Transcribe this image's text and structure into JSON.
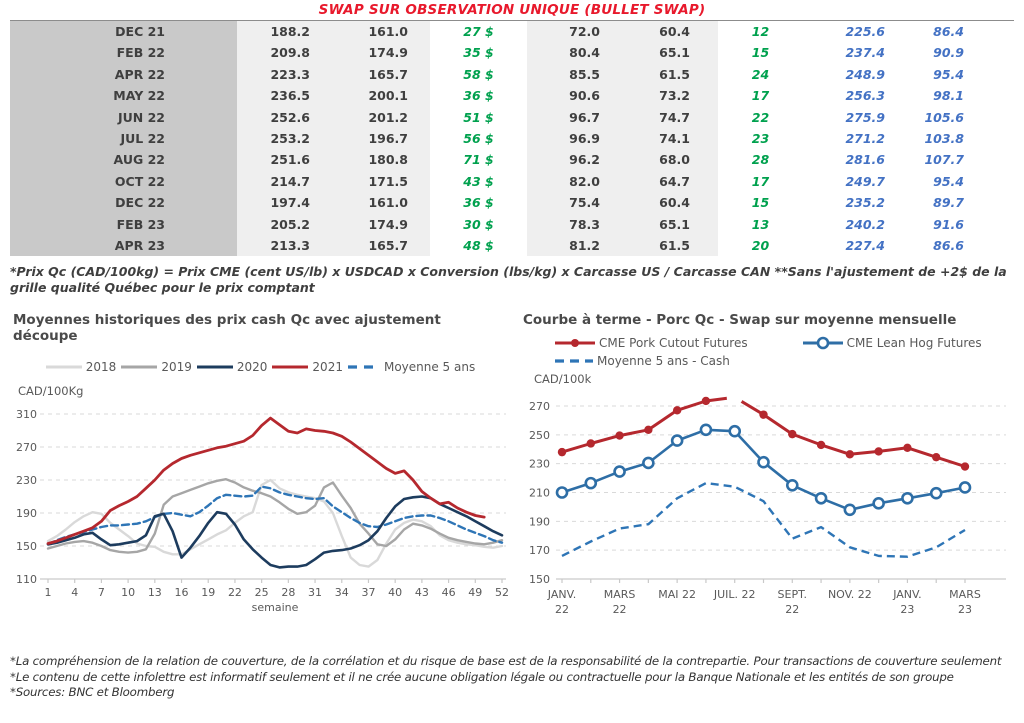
{
  "doc": {
    "title": "SWAP SUR OBSERVATION UNIQUE (BULLET SWAP)",
    "table_footnote": "*Prix Qc (CAD/100kg) = Prix CME (cent US/lb) x USDCAD x Conversion (lbs/kg) x Carcasse US / Carcasse CAN **Sans l'ajustement de +2$ de la grille qualité Québec pour le prix comptant",
    "bottom_notes": [
      "*La compréhension de la relation de couverture, de la corrélation et du risque de base est de la responsabilité de la contrepartie. Pour transactions de couverture seulement",
      "*Le contenu de cette infolettre est informatif seulement et il ne crée aucune obligation légale ou contractuelle pour la Banque Nationale et les entités de son groupe",
      "*Sources: BNC et Bloomberg"
    ]
  },
  "colors": {
    "title_red": "#e8192c",
    "red_2021": "#b5282e",
    "navy_2020": "#1d3c5e",
    "gray_2019": "#a6a6a6",
    "gray_2018": "#d9d9d9",
    "blue_dashed": "#2e75b6",
    "blue_lean_hog": "#2e6ea6",
    "green_text": "#00a14e",
    "blue_text": "#4472c4",
    "band_dark": "#c9c9c9",
    "band_light": "#efefef",
    "grid": "#d9d9d9",
    "axis_text": "#595959"
  },
  "table": {
    "rows": [
      [
        "DEC 21",
        "188.2",
        "161.0",
        "27 $",
        "72.0",
        "60.4",
        "12",
        "225.6",
        "86.4"
      ],
      [
        "FEB 22",
        "209.8",
        "174.9",
        "35 $",
        "80.4",
        "65.1",
        "15",
        "237.4",
        "90.9"
      ],
      [
        "APR 22",
        "223.3",
        "165.7",
        "58 $",
        "85.5",
        "61.5",
        "24",
        "248.9",
        "95.4"
      ],
      [
        "MAY 22",
        "236.5",
        "200.1",
        "36 $",
        "90.6",
        "73.2",
        "17",
        "256.3",
        "98.1"
      ],
      [
        "JUN 22",
        "252.6",
        "201.2",
        "51 $",
        "96.7",
        "74.7",
        "22",
        "275.9",
        "105.6"
      ],
      [
        "JUL 22",
        "253.2",
        "196.7",
        "56 $",
        "96.9",
        "74.1",
        "23",
        "271.2",
        "103.8"
      ],
      [
        "AUG 22",
        "251.6",
        "180.8",
        "71 $",
        "96.2",
        "68.0",
        "28",
        "281.6",
        "107.7"
      ],
      [
        "OCT 22",
        "214.7",
        "171.5",
        "43 $",
        "82.0",
        "64.7",
        "17",
        "249.7",
        "95.4"
      ],
      [
        "DEC 22",
        "197.4",
        "161.0",
        "36 $",
        "75.4",
        "60.4",
        "15",
        "235.2",
        "89.7"
      ],
      [
        "FEB 23",
        "205.2",
        "174.9",
        "30 $",
        "78.3",
        "65.1",
        "13",
        "240.2",
        "91.6"
      ],
      [
        "APR 23",
        "213.3",
        "165.7",
        "48 $",
        "81.2",
        "61.5",
        "20",
        "227.4",
        "86.6"
      ]
    ]
  },
  "chart_data": [
    {
      "type": "line",
      "title": "Moyennes historiques des prix cash Qc avec ajustement découpe",
      "ylabel": "CAD/100Kg",
      "xlabel": "semaine",
      "ylim": [
        110,
        310
      ],
      "yticks": [
        110,
        150,
        190,
        230,
        270,
        310
      ],
      "xticks": [
        1,
        4,
        7,
        10,
        13,
        16,
        19,
        22,
        25,
        28,
        31,
        34,
        37,
        40,
        43,
        46,
        49,
        52
      ],
      "legend_position": "top-center",
      "grid": "dashed-horizontal",
      "x_weeks": 52,
      "series": [
        {
          "name": "2018",
          "color": "#d9d9d9",
          "dash": null,
          "width": 2.4,
          "values": [
            156,
            162,
            170,
            179,
            186,
            191,
            189,
            178,
            170,
            162,
            153,
            150,
            149,
            143,
            140,
            140,
            146,
            152,
            158,
            164,
            169,
            178,
            186,
            191,
            224,
            230,
            220,
            215,
            212,
            210,
            208,
            204,
            190,
            162,
            136,
            127,
            125,
            133,
            153,
            170,
            178,
            182,
            180,
            174,
            163,
            157,
            154,
            152,
            151,
            149,
            148,
            150
          ]
        },
        {
          "name": "2019",
          "color": "#a6a6a6",
          "dash": null,
          "width": 2.4,
          "values": [
            147,
            150,
            153,
            155,
            156,
            154,
            150,
            145,
            143,
            142,
            143,
            146,
            165,
            200,
            210,
            214,
            218,
            222,
            226,
            229,
            231,
            227,
            221,
            217,
            214,
            210,
            203,
            195,
            189,
            191,
            199,
            221,
            227,
            211,
            196,
            177,
            165,
            152,
            150,
            158,
            170,
            177,
            175,
            171,
            165,
            160,
            157,
            155,
            153,
            152,
            154,
            157
          ]
        },
        {
          "name": "2020",
          "color": "#1d3c5e",
          "dash": null,
          "width": 2.6,
          "values": [
            152,
            154,
            157,
            160,
            164,
            166,
            158,
            151,
            152,
            154,
            156,
            163,
            186,
            189,
            168,
            136,
            148,
            162,
            178,
            191,
            189,
            176,
            158,
            146,
            136,
            127,
            124,
            125,
            125,
            127,
            134,
            142,
            144,
            145,
            147,
            151,
            157,
            168,
            184,
            198,
            207,
            209,
            210,
            208,
            201,
            196,
            191,
            186,
            180,
            174,
            168,
            163
          ]
        },
        {
          "name": "2021",
          "color": "#b5282e",
          "dash": null,
          "width": 2.8,
          "values": [
            153,
            156,
            160,
            164,
            168,
            172,
            180,
            193,
            199,
            204,
            210,
            220,
            230,
            242,
            250,
            256,
            260,
            263,
            266,
            269,
            271,
            274,
            277,
            284,
            296,
            305,
            297,
            289,
            287,
            292,
            290,
            289,
            287,
            283,
            276,
            268,
            260,
            252,
            244,
            238,
            241,
            230,
            216,
            208,
            201,
            203,
            196,
            191,
            187,
            185,
            null,
            null
          ]
        },
        {
          "name": "Moyenne 5 ans",
          "color": "#2e75b6",
          "dash": "7 4",
          "width": 2.4,
          "values": [
            152,
            157,
            161,
            164,
            167,
            170,
            173,
            175,
            175,
            176,
            177,
            180,
            185,
            189,
            190,
            188,
            186,
            191,
            199,
            208,
            212,
            211,
            210,
            211,
            222,
            220,
            215,
            212,
            210,
            208,
            207,
            208,
            198,
            191,
            184,
            178,
            174,
            173,
            176,
            180,
            184,
            186,
            187,
            187,
            184,
            180,
            175,
            170,
            166,
            162,
            157,
            154
          ]
        }
      ]
    },
    {
      "type": "line",
      "title": "Courbe à terme - Porc Qc - Swap sur moyenne mensuelle",
      "ylabel": "CAD/100k",
      "xlabel": "",
      "ylim": [
        150,
        270
      ],
      "yticks": [
        150,
        170,
        190,
        210,
        230,
        250,
        270
      ],
      "x_points": 15,
      "tick_indices": [
        0,
        2,
        4,
        6,
        8,
        10,
        12,
        14
      ],
      "tick_labels": [
        [
          "JANV.",
          "22"
        ],
        [
          "MARS",
          "22"
        ],
        [
          "MAI 22"
        ],
        [
          "JUIL. 22"
        ],
        [
          "SEPT.",
          "22"
        ],
        [
          "NOV. 22"
        ],
        [
          "JANV.",
          "23"
        ],
        [
          "MARS",
          "23"
        ]
      ],
      "legend_position": "top-left",
      "grid": "dashed-horizontal",
      "series": [
        {
          "name": "CME Pork Cutout Futures",
          "color": "#b5282e",
          "marker": "filled-circle",
          "gap_at_index": 6,
          "width": 3,
          "values": [
            238,
            244,
            249.5,
            253.5,
            267,
            273.5,
            276,
            264,
            250.5,
            243,
            236.5,
            238.5,
            241,
            234.5,
            228
          ]
        },
        {
          "name": "CME Lean Hog Futures",
          "color": "#2e6ea6",
          "marker": "open-circle",
          "width": 2.6,
          "values": [
            210,
            216.5,
            224.5,
            230.5,
            246,
            253.5,
            252.5,
            231,
            215,
            206,
            198,
            202.5,
            206,
            209.5,
            213.5
          ]
        },
        {
          "name": "Moyenne 5 ans - Cash",
          "color": "#2e75b6",
          "dash": "8 5",
          "width": 2.4,
          "values": [
            166,
            176,
            185,
            188,
            206,
            216.5,
            214,
            204,
            178,
            186,
            172,
            166,
            165.5,
            172,
            184
          ]
        }
      ]
    }
  ],
  "legend_left": {
    "items": [
      "2018",
      "2019",
      "2020",
      "2021",
      "Moyenne 5 ans"
    ]
  },
  "legend_right": {
    "items": [
      "CME Pork Cutout Futures",
      "CME Lean Hog Futures",
      "Moyenne 5 ans - Cash"
    ]
  }
}
